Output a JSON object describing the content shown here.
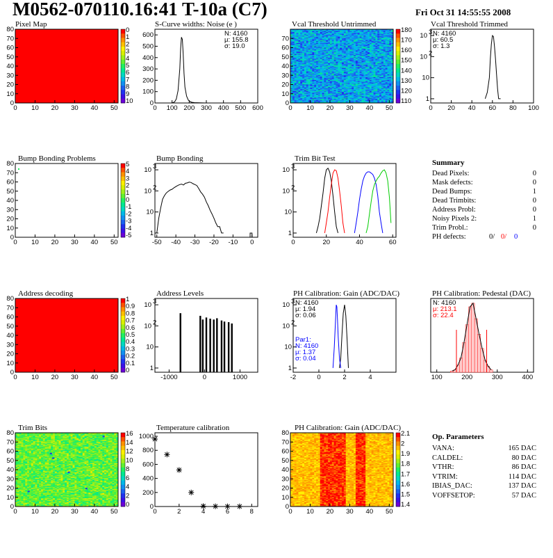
{
  "header": {
    "title": "M0562-070110.16:41 T-10a (C7)",
    "date": "Fri Oct 31 14:55:55 2008"
  },
  "palette": [
    "#6a00d8",
    "#3a10e8",
    "#2030f0",
    "#1a60f0",
    "#1090f0",
    "#00b8e8",
    "#00d8c0",
    "#00e890",
    "#20f060",
    "#60f030",
    "#a0f018",
    "#d8f000",
    "#fff000",
    "#ffc000",
    "#ff9000",
    "#ff5000",
    "#ff0000"
  ],
  "colors": {
    "red": "#ff0000",
    "blue": "#0000ff",
    "green": "#00cc00",
    "black": "#000000"
  },
  "panels": {
    "pixel_map": {
      "title": "Pixel Map"
    },
    "scurve": {
      "title": "S-Curve widths: Noise (e )",
      "stats": [
        "N: 4160",
        "μ: 155.8",
        "σ: 19.0"
      ]
    },
    "vcal_untrimmed": {
      "title": "Vcal Threshold Untrimmed"
    },
    "vcal_trimmed": {
      "title": "Vcal Threshold Trimmed",
      "stats": [
        "N: 4160",
        "μ: 60.5",
        "σ:  1.3"
      ]
    },
    "bump_problems": {
      "title": "Bump Bonding Problems"
    },
    "bump_bonding": {
      "title": "Bump Bonding"
    },
    "trim_bit_test": {
      "title": "Trim Bit Test"
    },
    "summary": {
      "title": "Summary",
      "rows": [
        {
          "label": "Dead Pixels:",
          "value": "0"
        },
        {
          "label": "Mask defects:",
          "value": "0"
        },
        {
          "label": "Dead Bumps:",
          "value": "1"
        },
        {
          "label": "Dead Trimbits:",
          "value": "0"
        },
        {
          "label": "Address Probl:",
          "value": "0"
        },
        {
          "label": "Noisy Pixels 2:",
          "value": "1"
        },
        {
          "label": "Trim Probl.:",
          "value": "0"
        }
      ],
      "ph_defects": {
        "label": "PH defects:",
        "black": "0/",
        "red": "0/",
        "blue": "0"
      }
    },
    "address_decoding": {
      "title": "Address decoding"
    },
    "address_levels": {
      "title": "Address Levels"
    },
    "ph_gain": {
      "title": "PH Calibration: Gain (ADC/DAC)",
      "stats": [
        "N: 4160",
        "μ: 1.94",
        "σ: 0.06"
      ],
      "par1": [
        "Par1:",
        "N: 4160",
        "μ: 1.37",
        "σ: 0.04"
      ]
    },
    "ph_pedestal": {
      "title": "PH Calibration: Pedestal (DAC)",
      "stats": [
        "N: 4160",
        "μ: 213.1",
        "σ: 22.4"
      ]
    },
    "trim_bits": {
      "title": "Trim Bits"
    },
    "temperature": {
      "title": "Temperature calibration"
    },
    "ph_gain_map": {
      "title": "PH Calibration: Gain (ADC/DAC)"
    },
    "op_params": {
      "title": "Op. Parameters",
      "rows": [
        {
          "label": "VANA:",
          "value": "165 DAC"
        },
        {
          "label": "CALDEL:",
          "value": "80 DAC"
        },
        {
          "label": "VTHR:",
          "value": "86 DAC"
        },
        {
          "label": "VTRIM:",
          "value": "114 DAC"
        },
        {
          "label": "IBIAS_DAC:",
          "value": "137 DAC"
        },
        {
          "label": "VOFFSETOP:",
          "value": "57 DAC"
        }
      ]
    }
  },
  "chart_data": [
    {
      "id": "pixel_map",
      "type": "heatmap",
      "title": "Pixel Map",
      "xticks": [
        0,
        10,
        20,
        30,
        40,
        50
      ],
      "yticks": [
        0,
        10,
        20,
        30,
        40,
        50,
        60,
        70,
        80
      ],
      "xlim": [
        0,
        52
      ],
      "ylim": [
        0,
        80
      ],
      "fill": "uniform red",
      "zticks": [
        "0",
        "1",
        "2",
        "3",
        "4",
        "5",
        "6",
        "7",
        "8",
        "9",
        "10"
      ]
    },
    {
      "id": "scurve",
      "type": "line",
      "title": "S-Curve widths: Noise (e )",
      "xticks": [
        0,
        100,
        200,
        300,
        400,
        500,
        600
      ],
      "yticks": [
        0,
        100,
        200,
        300,
        400,
        500,
        600
      ],
      "xlim": [
        0,
        600
      ],
      "ylim": [
        0,
        650
      ],
      "x": [
        95,
        105,
        115,
        125,
        135,
        145,
        150,
        155,
        160,
        165,
        170,
        175,
        185,
        195,
        205,
        215,
        230,
        260,
        300
      ],
      "y": [
        0,
        3,
        10,
        35,
        110,
        300,
        480,
        580,
        560,
        430,
        260,
        140,
        60,
        25,
        12,
        6,
        3,
        1,
        0
      ]
    },
    {
      "id": "vcal_untrimmed",
      "type": "heatmap",
      "title": "Vcal Threshold Untrimmed",
      "xticks": [
        0,
        10,
        20,
        30,
        40,
        50
      ],
      "yticks": [
        0,
        10,
        20,
        30,
        40,
        50,
        60,
        70
      ],
      "xlim": [
        0,
        52
      ],
      "ylim": [
        0,
        80
      ],
      "fill": "noisy blue-cyan",
      "zticks": [
        "180",
        "170",
        "160",
        "150",
        "140",
        "130",
        "120",
        "110"
      ]
    },
    {
      "id": "vcal_trimmed",
      "type": "line",
      "title": "Vcal Threshold Trimmed",
      "log_y": true,
      "xticks": [
        0,
        20,
        40,
        60,
        80,
        100
      ],
      "xlim": [
        0,
        100
      ],
      "x": [
        53,
        55,
        57,
        58,
        59,
        60,
        61,
        62,
        63,
        64,
        65,
        66,
        68
      ],
      "y": [
        1,
        2,
        10,
        80,
        400,
        1000,
        900,
        300,
        80,
        15,
        3,
        1,
        1
      ]
    },
    {
      "id": "bump_problems",
      "type": "heatmap",
      "title": "Bump Bonding Problems",
      "xticks": [
        0,
        10,
        20,
        30,
        40,
        50
      ],
      "yticks": [
        0,
        10,
        20,
        30,
        40,
        50,
        60,
        70,
        80
      ],
      "xlim": [
        0,
        52
      ],
      "ylim": [
        0,
        80
      ],
      "fill": "empty",
      "zticks": [
        "5",
        "4",
        "3",
        "2",
        "1",
        "0",
        "-1",
        "-2",
        "-3",
        "-4",
        "-5"
      ]
    },
    {
      "id": "bump_bonding",
      "type": "line",
      "title": "Bump Bonding",
      "log_y": true,
      "xticks": [
        -50,
        -40,
        -30,
        -20,
        -10,
        0
      ],
      "xlim": [
        -51,
        3
      ],
      "x": [
        -50,
        -49,
        -48,
        -47,
        -46,
        -45,
        -44,
        -43,
        -42,
        -41,
        -40,
        -39,
        -38,
        -37,
        -36,
        -35,
        -34,
        -33,
        -32,
        -31,
        -30,
        -29,
        -28,
        -27,
        -26,
        -25,
        -24,
        -23,
        -22,
        -21,
        -20,
        -19,
        -18,
        -17,
        -16,
        -15,
        -1,
        0
      ],
      "y": [
        1,
        5,
        15,
        40,
        60,
        80,
        95,
        110,
        120,
        140,
        160,
        180,
        200,
        210,
        190,
        230,
        240,
        260,
        250,
        220,
        200,
        180,
        130,
        90,
        70,
        50,
        30,
        20,
        12,
        8,
        5,
        3,
        2,
        2,
        1,
        1,
        1,
        1
      ]
    },
    {
      "id": "trim_bit_test",
      "type": "line",
      "title": "Trim Bit Test",
      "log_y": true,
      "xticks": [
        0,
        20,
        40,
        60
      ],
      "xlim": [
        0,
        62
      ],
      "series": [
        {
          "color": "black",
          "x": [
            14,
            15,
            16,
            17,
            18,
            19,
            20,
            21,
            22,
            23,
            24,
            25,
            26,
            27
          ],
          "y": [
            1,
            2,
            5,
            20,
            80,
            400,
            1000,
            1200,
            800,
            300,
            60,
            10,
            2,
            1
          ]
        },
        {
          "color": "red",
          "x": [
            19,
            20,
            21,
            22,
            23,
            24,
            25,
            26,
            27,
            28,
            29,
            30,
            31
          ],
          "y": [
            1,
            3,
            10,
            50,
            200,
            700,
            1000,
            900,
            400,
            100,
            20,
            3,
            1
          ]
        },
        {
          "color": "blue",
          "x": [
            37,
            38,
            39,
            40,
            41,
            42,
            43,
            44,
            45,
            46,
            47,
            48,
            49,
            50,
            51,
            52,
            53,
            54
          ],
          "y": [
            1,
            3,
            10,
            40,
            120,
            300,
            500,
            700,
            800,
            800,
            700,
            600,
            400,
            200,
            60,
            10,
            3,
            1
          ]
        },
        {
          "color": "green",
          "x": [
            44,
            45,
            46,
            47,
            48,
            49,
            50,
            51,
            52,
            53,
            54,
            55,
            56,
            57,
            58,
            59
          ],
          "y": [
            1,
            2,
            8,
            30,
            100,
            200,
            300,
            400,
            500,
            700,
            900,
            1000,
            700,
            300,
            50,
            3
          ]
        }
      ]
    },
    {
      "id": "address_decoding",
      "type": "heatmap",
      "title": "Address decoding",
      "xticks": [
        0,
        10,
        20,
        30,
        40,
        50
      ],
      "yticks": [
        0,
        10,
        20,
        30,
        40,
        50,
        60,
        70,
        80
      ],
      "xlim": [
        0,
        52
      ],
      "ylim": [
        0,
        80
      ],
      "fill": "uniform red",
      "zticks": [
        "1",
        "0.9",
        "0.8",
        "0.7",
        "0.6",
        "0.5",
        "0.4",
        "0.3",
        "0.2",
        "0.1",
        "0"
      ]
    },
    {
      "id": "address_levels",
      "type": "bar",
      "title": "Address Levels",
      "log_y": true,
      "xticks": [
        -1000,
        0,
        1000
      ],
      "xlim": [
        -1400,
        1500
      ],
      "x": [
        -680,
        -120,
        -50,
        50,
        160,
        260,
        350,
        480,
        560,
        680,
        770
      ],
      "y": [
        400,
        300,
        200,
        250,
        220,
        200,
        230,
        180,
        160,
        150,
        130
      ]
    },
    {
      "id": "ph_gain",
      "type": "line",
      "title": "PH Calibration: Gain (ADC/DAC)",
      "log_y": true,
      "xticks": [
        -2,
        0,
        2,
        4
      ],
      "xlim": [
        -2,
        6
      ],
      "series": [
        {
          "color": "black",
          "x": [
            1.6,
            1.7,
            1.8,
            1.9,
            2.0,
            2.1,
            2.2,
            2.3
          ],
          "y": [
            1,
            3,
            40,
            400,
            1000,
            300,
            20,
            1
          ]
        },
        {
          "color": "blue",
          "x": [
            1.1,
            1.2,
            1.3,
            1.35,
            1.4,
            1.45,
            1.5,
            1.6,
            1.7
          ],
          "y": [
            1,
            10,
            200,
            1000,
            800,
            200,
            30,
            3,
            1
          ]
        }
      ]
    },
    {
      "id": "ph_pedestal",
      "type": "bar",
      "title": "PH Calibration: Pedestal (DAC)",
      "xticks": [
        100,
        200,
        300,
        400
      ],
      "xlim": [
        80,
        420
      ],
      "x": [
        150,
        160,
        170,
        180,
        190,
        200,
        210,
        220,
        230,
        240,
        250,
        260,
        270,
        280
      ],
      "y": [
        1,
        2,
        6,
        12,
        25,
        40,
        55,
        58,
        45,
        32,
        20,
        10,
        5,
        2
      ]
    },
    {
      "id": "trim_bits",
      "type": "heatmap",
      "title": "Trim Bits",
      "xticks": [
        0,
        10,
        20,
        30,
        40,
        50
      ],
      "yticks": [
        0,
        10,
        20,
        30,
        40,
        50,
        60,
        70,
        80
      ],
      "xlim": [
        0,
        52
      ],
      "ylim": [
        0,
        80
      ],
      "fill": "noisy green",
      "zticks": [
        "16",
        "14",
        "12",
        "10",
        "8",
        "6",
        "4",
        "2",
        "0"
      ]
    },
    {
      "id": "temperature",
      "type": "scatter",
      "title": "Temperature calibration",
      "xticks": [
        0,
        2,
        4,
        6,
        8
      ],
      "yticks": [
        0,
        200,
        400,
        600,
        800,
        1000
      ],
      "xlim": [
        0,
        8.5
      ],
      "ylim": [
        0,
        1050
      ],
      "x": [
        0,
        1,
        2,
        3,
        4,
        5,
        6,
        7
      ],
      "y": [
        960,
        740,
        520,
        200,
        5,
        3,
        2,
        2
      ]
    },
    {
      "id": "ph_gain_map",
      "type": "heatmap",
      "title": "PH Calibration: Gain (ADC/DAC)",
      "xticks": [
        0,
        10,
        20,
        30,
        40,
        50
      ],
      "yticks": [
        0,
        10,
        20,
        30,
        40,
        50,
        60,
        70,
        80
      ],
      "xlim": [
        0,
        52
      ],
      "ylim": [
        0,
        80
      ],
      "fill": "noisy orange with red columns",
      "zticks": [
        "2.1",
        "2",
        "1.9",
        "1.8",
        "1.7",
        "1.6",
        "1.5",
        "1.4"
      ]
    }
  ]
}
